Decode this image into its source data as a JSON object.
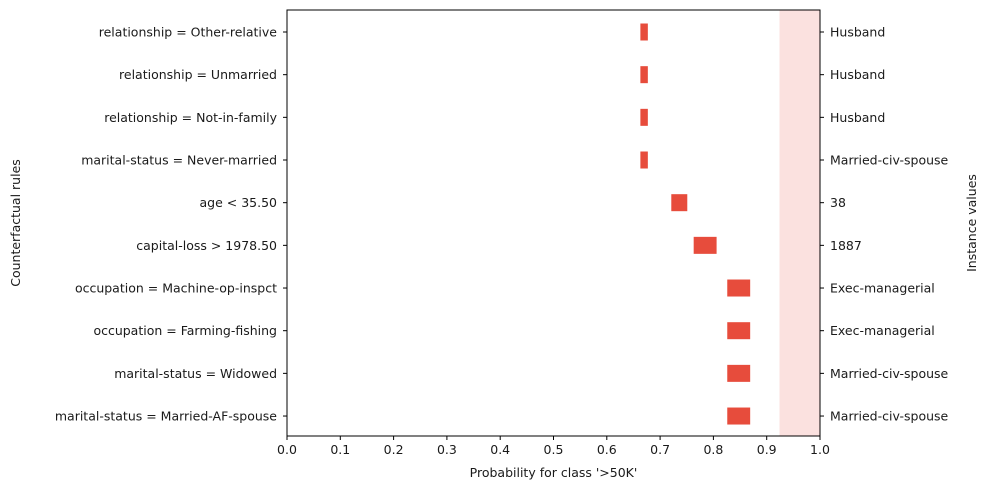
{
  "chart_data": {
    "type": "bar",
    "orientation": "horizontal",
    "xlabel": "Probability for class '>50K'",
    "ylabel": "Counterfactual rules",
    "right_ylabel": "Instance values",
    "xlim": [
      0.0,
      1.0
    ],
    "xticks": [
      "0.0",
      "0.1",
      "0.2",
      "0.3",
      "0.4",
      "0.5",
      "0.6",
      "0.7",
      "0.8",
      "0.9",
      "1.0"
    ],
    "grid": false,
    "bar_color": "#e74c3c",
    "band": {
      "from": 0.924,
      "to": 1.0,
      "color": "#fbe1df"
    },
    "rules": [
      {
        "rule": "relationship = Other-relative",
        "instance_value": "Husband",
        "low": 0.663,
        "high": 0.677
      },
      {
        "rule": "relationship = Unmarried",
        "instance_value": "Husband",
        "low": 0.663,
        "high": 0.677
      },
      {
        "rule": "relationship = Not-in-family",
        "instance_value": "Husband",
        "low": 0.663,
        "high": 0.677
      },
      {
        "rule": "marital-status = Never-married",
        "instance_value": "Married-civ-spouse",
        "low": 0.663,
        "high": 0.677
      },
      {
        "rule": "age < 35.50",
        "instance_value": "38",
        "low": 0.721,
        "high": 0.751
      },
      {
        "rule": "capital-loss > 1978.50",
        "instance_value": "1887",
        "low": 0.763,
        "high": 0.806
      },
      {
        "rule": "occupation = Machine-op-inspct",
        "instance_value": "Exec-managerial",
        "low": 0.826,
        "high": 0.869
      },
      {
        "rule": "occupation = Farming-fishing",
        "instance_value": "Exec-managerial",
        "low": 0.826,
        "high": 0.869
      },
      {
        "rule": "marital-status = Widowed",
        "instance_value": "Married-civ-spouse",
        "low": 0.826,
        "high": 0.869
      },
      {
        "rule": "marital-status = Married-AF-spouse",
        "instance_value": "Married-civ-spouse",
        "low": 0.826,
        "high": 0.869
      }
    ]
  }
}
